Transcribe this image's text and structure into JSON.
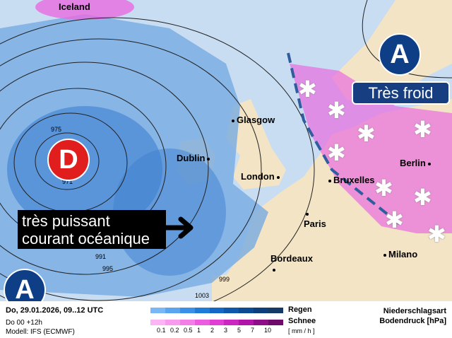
{
  "map": {
    "cities": [
      "Iceland",
      "Glasgow",
      "Dublin",
      "London",
      "Bruxelles",
      "Berlin",
      "Paris",
      "Bordeaux",
      "Milano"
    ],
    "pressure_systems": {
      "high_north": "A",
      "high_south": "A",
      "low": "D"
    },
    "annotation_cold": "Très froid",
    "annotation_current": [
      "très puissant",
      "courant océanique"
    ],
    "isobar_labels": [
      "975",
      "971",
      "991",
      "995",
      "999",
      "1003"
    ],
    "colors": {
      "high": "#0e3f86",
      "low": "#e01e1e",
      "ocean": "#c9ddf2",
      "land": "#f3e4c6",
      "rain": "#3d7fd0",
      "snow": "#e86ce0"
    }
  },
  "legend": {
    "datetime": "Do, 29.01.2026, 09..12 UTC",
    "run": "Do 00 +12h",
    "model": "Modell: IFS (ECMWF)",
    "rain_label": "Regen",
    "snow_label": "Schnee",
    "unit": "[ mm / h ]",
    "ticks": [
      "0.1",
      "0.2",
      "0.5",
      "1",
      "2",
      "3",
      "5",
      "7",
      "10"
    ],
    "rain_colors": [
      "#7ab8f5",
      "#5aa5f0",
      "#3a90e8",
      "#1f7ad8",
      "#1268c4",
      "#0d58ac",
      "#0c4a93",
      "#0c3e7c",
      "#153a68"
    ],
    "snow_colors": [
      "#fbb4f4",
      "#f89bef",
      "#f47ee8",
      "#ec5ce0",
      "#e03ed4",
      "#cc25c2",
      "#b015a8",
      "#8f0c88",
      "#6e0a6a"
    ],
    "title1": "Niederschlagsart",
    "title2": "Bodendruck [hPa]"
  }
}
